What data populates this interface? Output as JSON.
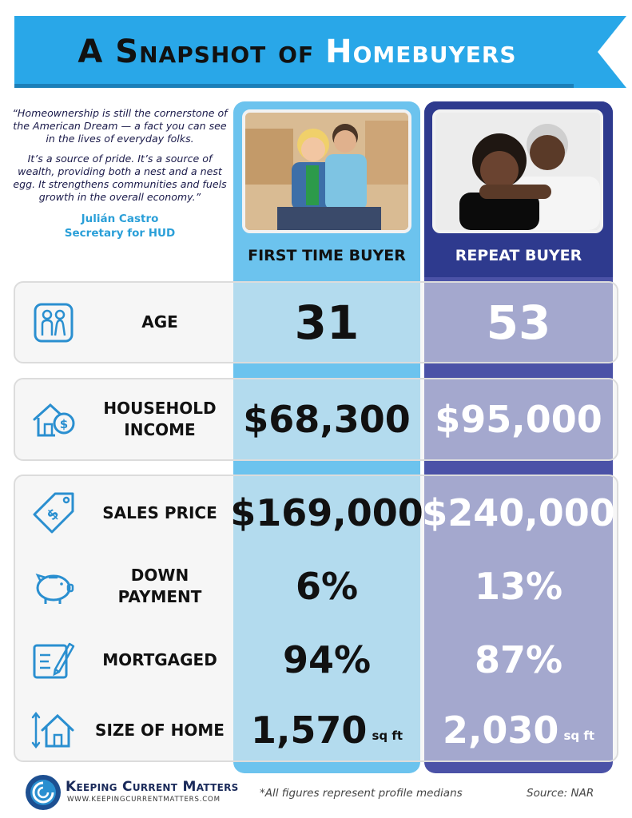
{
  "banner": {
    "title_part1": "A Snapshot of",
    "title_part2": "Homebuyers",
    "color": "#29a7e8"
  },
  "quote": {
    "paragraph1": "“Homeownership is still the cornerstone of the American Dream — a fact you can see in the lives of everyday folks.",
    "paragraph2": "It’s a source of pride. It’s a source of wealth, providing both a nest and a nest egg. It strengthens communities and fuels growth in the overall economy.”",
    "author_name": "Julián Castro",
    "author_title": "Secretary for HUD"
  },
  "columns": {
    "first": {
      "heading": "FIRST TIME BUYER",
      "color": "#6cc3ee"
    },
    "repeat": {
      "heading": "REPEAT BUYER",
      "color": "#4b52a7"
    }
  },
  "rows": [
    {
      "label": "AGE",
      "first": "31",
      "repeat": "53",
      "icon": "family-icon"
    },
    {
      "label": "HOUSEHOLD INCOME",
      "first": "$68,300",
      "repeat": "$95,000",
      "icon": "house-dollar-icon"
    },
    {
      "label": "SALES PRICE",
      "first": "$169,000",
      "repeat": "$240,000",
      "icon": "price-tag-icon"
    },
    {
      "label": "DOWN PAYMENT",
      "first": "6%",
      "repeat": "13%",
      "icon": "piggy-bank-icon"
    },
    {
      "label": "MORTGAGED",
      "first": "94%",
      "repeat": "87%",
      "icon": "contract-icon"
    },
    {
      "label": "SIZE OF HOME",
      "first": "1,570",
      "repeat": "2,030",
      "unit": "sq ft",
      "icon": "home-size-icon"
    }
  ],
  "footer": {
    "brand": "Keeping Current Matters",
    "url": "www.keepingcurrentmatters.com",
    "note": "*All figures represent profile medians",
    "source": "Source: NAR"
  }
}
